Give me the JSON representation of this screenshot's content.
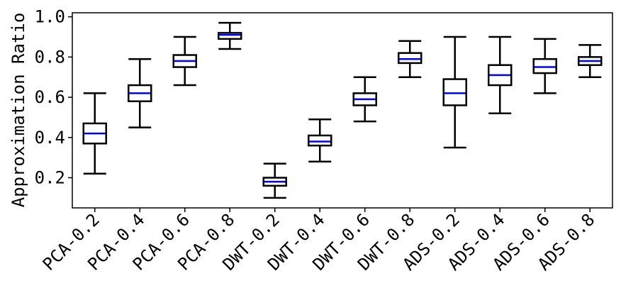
{
  "chart_data": {
    "type": "box",
    "title": "",
    "xlabel": "",
    "ylabel": "Approximation Ratio",
    "ylim": [
      0.05,
      1.02
    ],
    "yticks": [
      "0.2",
      "0.4",
      "0.6",
      "0.8",
      "1.0"
    ],
    "grid": false,
    "median_color": "#0000ff",
    "box_color": "#000000",
    "categories": [
      "PCA-0.2",
      "PCA-0.4",
      "PCA-0.6",
      "PCA-0.8",
      "DWT-0.2",
      "DWT-0.4",
      "DWT-0.6",
      "DWT-0.8",
      "ADS-0.2",
      "ADS-0.4",
      "ADS-0.6",
      "ADS-0.8"
    ],
    "boxes": [
      {
        "whisker_low": 0.22,
        "q1": 0.37,
        "median": 0.42,
        "q3": 0.47,
        "whisker_high": 0.62
      },
      {
        "whisker_low": 0.45,
        "q1": 0.58,
        "median": 0.62,
        "q3": 0.66,
        "whisker_high": 0.79
      },
      {
        "whisker_low": 0.66,
        "q1": 0.75,
        "median": 0.78,
        "q3": 0.81,
        "whisker_high": 0.9
      },
      {
        "whisker_low": 0.84,
        "q1": 0.89,
        "median": 0.91,
        "q3": 0.92,
        "whisker_high": 0.97
      },
      {
        "whisker_low": 0.1,
        "q1": 0.16,
        "median": 0.18,
        "q3": 0.2,
        "whisker_high": 0.27
      },
      {
        "whisker_low": 0.28,
        "q1": 0.36,
        "median": 0.38,
        "q3": 0.41,
        "whisker_high": 0.49
      },
      {
        "whisker_low": 0.48,
        "q1": 0.56,
        "median": 0.59,
        "q3": 0.62,
        "whisker_high": 0.7
      },
      {
        "whisker_low": 0.7,
        "q1": 0.77,
        "median": 0.79,
        "q3": 0.82,
        "whisker_high": 0.88
      },
      {
        "whisker_low": 0.35,
        "q1": 0.56,
        "median": 0.62,
        "q3": 0.69,
        "whisker_high": 0.9
      },
      {
        "whisker_low": 0.52,
        "q1": 0.66,
        "median": 0.71,
        "q3": 0.76,
        "whisker_high": 0.9
      },
      {
        "whisker_low": 0.62,
        "q1": 0.72,
        "median": 0.75,
        "q3": 0.79,
        "whisker_high": 0.89
      },
      {
        "whisker_low": 0.7,
        "q1": 0.76,
        "median": 0.78,
        "q3": 0.8,
        "whisker_high": 0.86
      }
    ]
  }
}
